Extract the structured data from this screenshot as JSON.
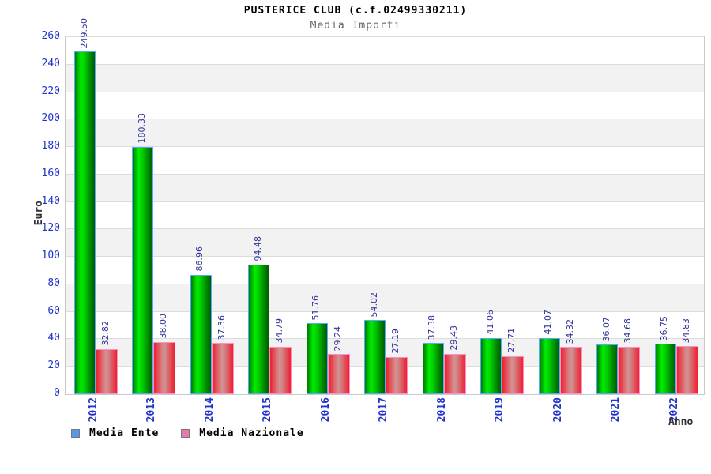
{
  "header": {
    "title": "PUSTERICE CLUB (c.f.02499330211)",
    "subtitle": "Media Importi"
  },
  "axes": {
    "y_label": "Euro",
    "x_label": "Anno",
    "y_ticks": [
      0,
      20,
      40,
      60,
      80,
      100,
      120,
      140,
      160,
      180,
      200,
      220,
      240,
      260
    ]
  },
  "legend": {
    "items": [
      {
        "label": "Media Ente",
        "swatch_color": "#5599e8"
      },
      {
        "label": "Media Nazionale",
        "swatch_color": "#e878b0"
      }
    ]
  },
  "chart_data": {
    "type": "bar",
    "title": "PUSTERICE CLUB (c.f.02499330211)",
    "subtitle": "Media Importi",
    "xlabel": "Anno",
    "ylabel": "Euro",
    "ylim": [
      0,
      260
    ],
    "y_tick_step": 20,
    "grid": true,
    "legend_position": "bottom",
    "categories": [
      "2012",
      "2013",
      "2014",
      "2015",
      "2016",
      "2017",
      "2018",
      "2019",
      "2020",
      "2021",
      "2022"
    ],
    "series": [
      {
        "name": "Media Ente",
        "color": "#00cc00",
        "values": [
          249.5,
          180.33,
          86.96,
          94.48,
          51.76,
          54.02,
          37.38,
          41.06,
          41.07,
          36.07,
          36.75
        ]
      },
      {
        "name": "Media Nazionale",
        "color": "#ee2030",
        "values": [
          32.82,
          38.0,
          37.36,
          34.79,
          29.24,
          27.19,
          29.43,
          27.71,
          34.32,
          34.68,
          34.83
        ]
      }
    ],
    "value_label_decimals": 2
  },
  "colors": {
    "tick_label": "#2233cc",
    "value_label": "#333399",
    "subtitle_text": "#666666",
    "axis_title": "#333333",
    "band_gray": "#f2f2f2",
    "gridline": "#dcdcdc",
    "plot_border": "#c8c8c8",
    "bar_green_border": "#55aaff",
    "bar_red_border": "#ff8fc8"
  }
}
